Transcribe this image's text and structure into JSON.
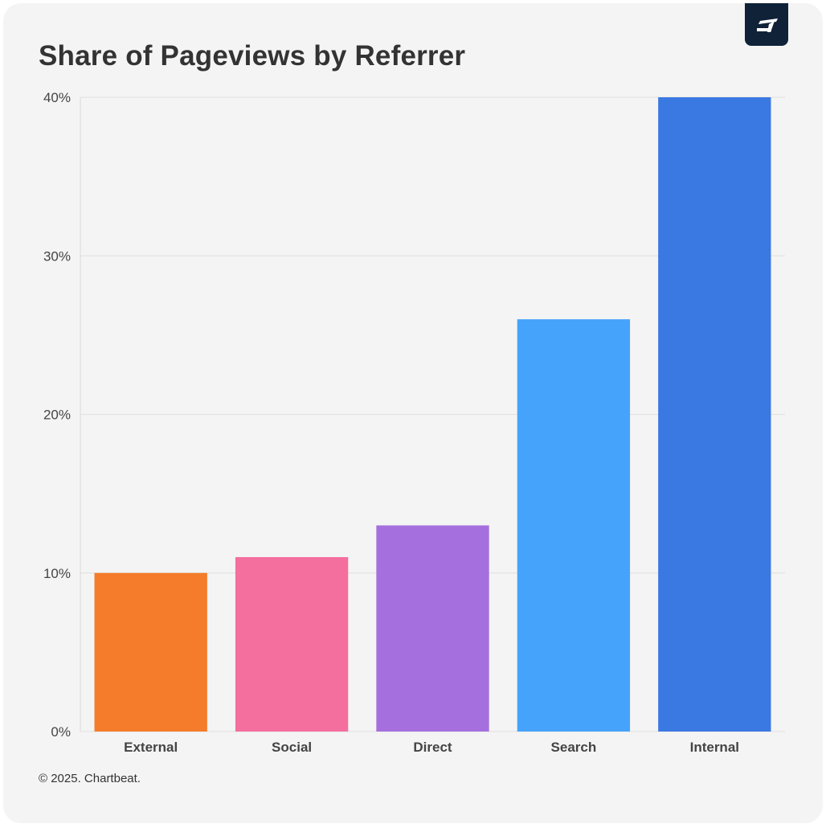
{
  "title": "Share of Pageviews by Referrer",
  "footer": "© 2025. Chartbeat.",
  "logo_icon": "chartbeat-logo-icon",
  "chart_data": {
    "type": "bar",
    "categories": [
      "External",
      "Social",
      "Direct",
      "Search",
      "Internal"
    ],
    "values": [
      10,
      11,
      13,
      26,
      40
    ],
    "colors": [
      "#f47c2a",
      "#f46e9e",
      "#a66fde",
      "#45a3fb",
      "#3a78e2"
    ],
    "ylim": [
      0,
      40
    ],
    "yticks": [
      0,
      10,
      20,
      30,
      40
    ],
    "ytick_labels": [
      "0%",
      "10%",
      "20%",
      "30%",
      "40%"
    ],
    "xlabel": "",
    "ylabel": "",
    "grid": true
  }
}
